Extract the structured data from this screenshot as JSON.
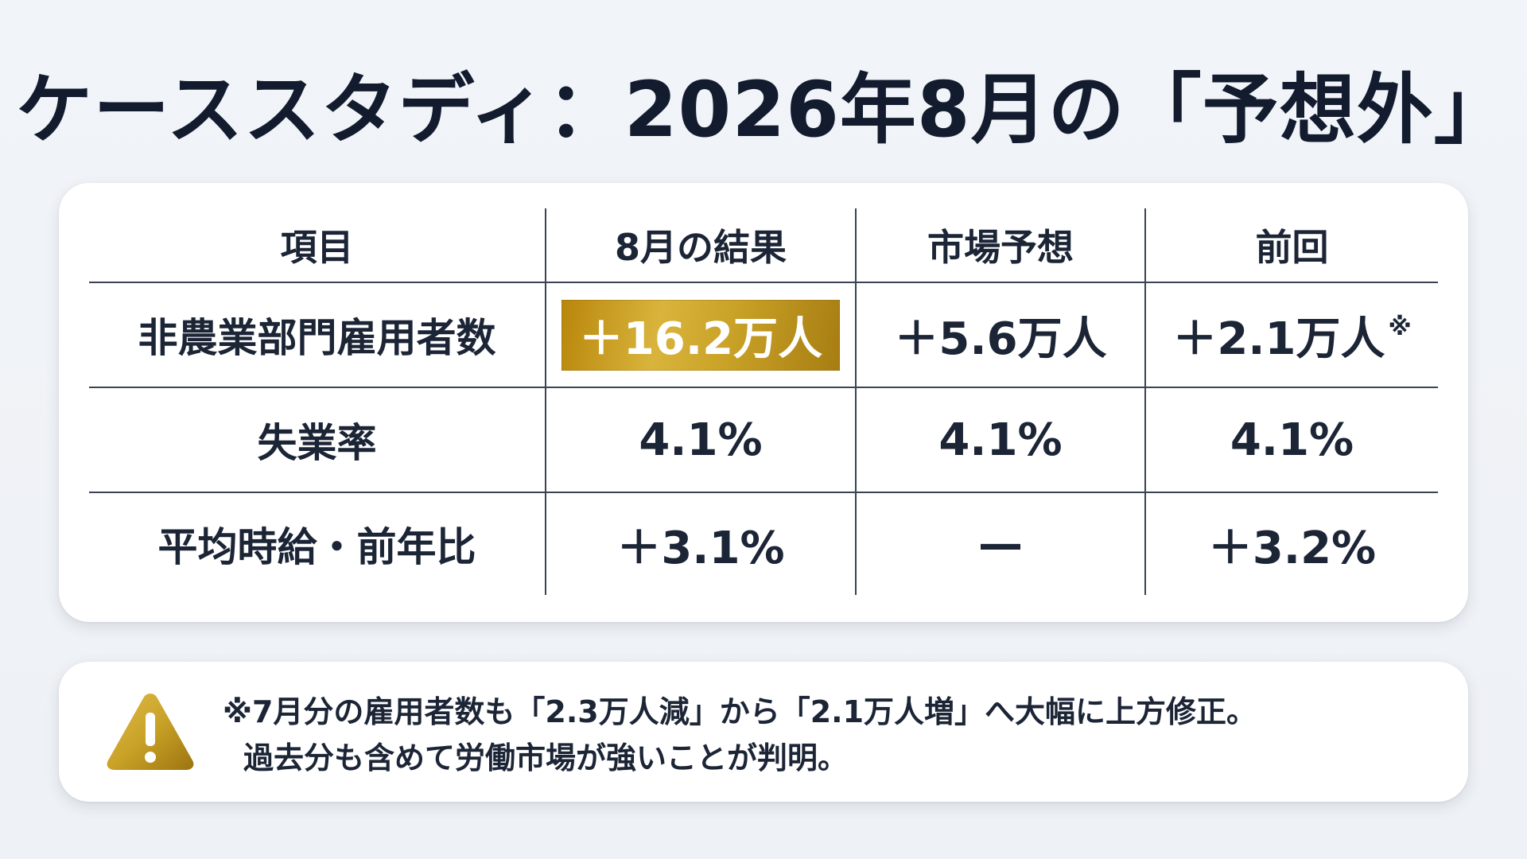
{
  "title": "ケーススタディ：2026年8月の「予想外」",
  "table": {
    "headers": [
      "項目",
      "8月の結果",
      "市場予想",
      "前回"
    ],
    "rows": [
      {
        "item": "非農業部門雇用者数",
        "result": "＋16.2万人",
        "forecast": "＋5.6万人",
        "previous": "＋2.1万人",
        "previous_mark": "※"
      },
      {
        "item": "失業率",
        "result": "4.1%",
        "forecast": "4.1%",
        "previous": "4.1%",
        "previous_mark": ""
      },
      {
        "item": "平均時給・前年比",
        "result": "＋3.1%",
        "forecast": "—",
        "previous": "＋3.2%",
        "previous_mark": ""
      }
    ],
    "highlight_color": "#c9a227"
  },
  "note": {
    "icon": "warning-icon",
    "lines": [
      "※7月分の雇用者数も「2.3万人減」から「2.1万人増」へ大幅に上方修正。",
      "過去分も含めて労働市場が強いことが判明。"
    ]
  }
}
